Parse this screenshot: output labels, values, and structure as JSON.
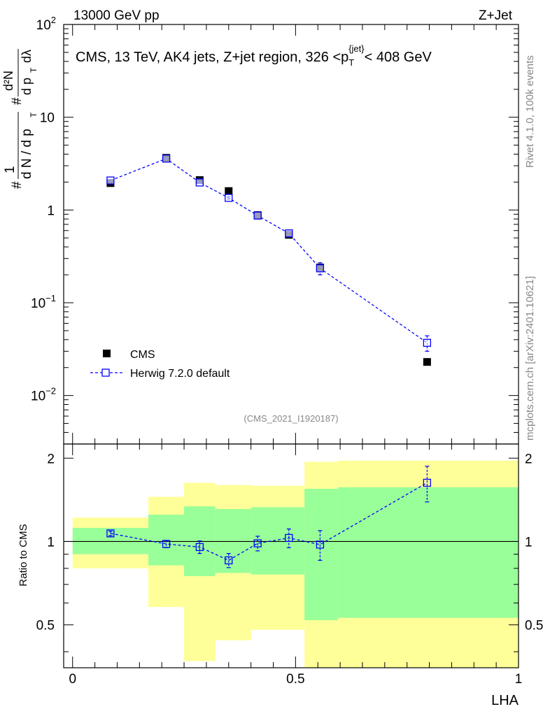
{
  "header": {
    "left": "13000 GeV pp",
    "right": "Z+Jet"
  },
  "side": {
    "rivet": "Rivet 4.1.0,  100k events",
    "mcplots": "mcplots.cern.ch [arXiv:2401.10621]"
  },
  "watermark": "(CMS_2021_I1920187)",
  "colors": {
    "mc": "#0000ff",
    "data": "#000000",
    "band_inner": "#99ff99",
    "band_outer": "#ffff99"
  },
  "chart_data": [
    {
      "type": "scatter",
      "title": "CMS, 13 TeV, AK4 jets, Z+jet region, 326 <p_T^{jet}< 408 GeV",
      "title_parts": {
        "main": "CMS, 13 TeV, AK4 jets, Z+jet region, 326 <p",
        "sub": "T",
        "sup": "{jet}",
        "tail": "< 408 GeV"
      },
      "xlabel": "LHA",
      "ylabel": "1/dN/dp_T  d²N/dp_T dλ",
      "ylabel_parts": {
        "frac_top": "1",
        "frac_bottom": "d N / d p",
        "t": "T",
        "d2n_top": "d²N",
        "d2n_bottom": "d p",
        "dlambda": "dλ",
        "hash": "#"
      },
      "yscale": "log",
      "ylim": [
        0.003,
        100
      ],
      "xlim": [
        -0.02,
        1.0
      ],
      "yticks": [
        {
          "value": 0.01,
          "base": "10",
          "exp": "−2"
        },
        {
          "value": 0.1,
          "base": "10",
          "exp": "−1"
        },
        {
          "value": 1,
          "base": "1",
          "exp": ""
        },
        {
          "value": 10,
          "base": "10",
          "exp": ""
        },
        {
          "value": 100,
          "base": "10",
          "exp": "2"
        }
      ],
      "series": [
        {
          "name": "CMS",
          "marker": "filled-square",
          "x": [
            0.085,
            0.21,
            0.285,
            0.35,
            0.415,
            0.485,
            0.555,
            0.795
          ],
          "y": [
            1.95,
            3.65,
            2.1,
            1.6,
            0.88,
            0.54,
            0.24,
            0.023
          ]
        },
        {
          "name": "Herwig 7.2.0 default",
          "marker": "open-square-dashed",
          "x": [
            0.085,
            0.21,
            0.285,
            0.35,
            0.415,
            0.485,
            0.555,
            0.795
          ],
          "y": [
            2.08,
            3.58,
            1.98,
            1.35,
            0.87,
            0.56,
            0.235,
            0.037
          ],
          "yerr_low": [
            0.05,
            0.08,
            0.05,
            0.04,
            0.03,
            0.03,
            0.035,
            0.007
          ],
          "yerr_high": [
            0.05,
            0.08,
            0.05,
            0.04,
            0.03,
            0.03,
            0.035,
            0.007
          ]
        }
      ]
    },
    {
      "type": "line",
      "ylabel": "Ratio to CMS",
      "xlabel": "LHA",
      "xlim": [
        -0.02,
        1.0
      ],
      "ylim": [
        0.35,
        2.25
      ],
      "yticks": [
        0.5,
        1,
        2
      ],
      "ytick_labels": [
        "0.5",
        "1",
        "2"
      ],
      "xticks": [
        0,
        0.5,
        1
      ],
      "xtick_labels": [
        "0",
        "0.5",
        "1"
      ],
      "reference_line": 1,
      "bands": {
        "edges": [
          0.0,
          0.17,
          0.25,
          0.32,
          0.4,
          0.52,
          0.595,
          1.0
        ],
        "outer_low": [
          0.8,
          0.58,
          0.37,
          0.44,
          0.48,
          0.33,
          0.35
        ],
        "outer_high": [
          1.22,
          1.45,
          1.63,
          1.6,
          1.59,
          1.62,
          1.96
        ],
        "inner_low": [
          0.9,
          0.82,
          0.75,
          0.77,
          0.76,
          0.52,
          0.53
        ],
        "inner_high": [
          1.12,
          1.25,
          1.34,
          1.31,
          1.33,
          1.56,
          1.57
        ],
        "edges_2": [
          0.52,
          0.595,
          1.0
        ],
        "outer_high_2": [
          1.94,
          1.96
        ],
        "inner_high_2": [
          1.55,
          1.57
        ]
      },
      "series": [
        {
          "name": "Herwig 7.2.0 default / CMS",
          "x": [
            0.085,
            0.21,
            0.285,
            0.35,
            0.415,
            0.485,
            0.555,
            0.795
          ],
          "y": [
            1.07,
            0.98,
            0.955,
            0.855,
            0.985,
            1.03,
            0.975,
            1.63
          ],
          "yerr_low": [
            0.02,
            0.03,
            0.05,
            0.05,
            0.06,
            0.08,
            0.12,
            0.24
          ],
          "yerr_high": [
            0.02,
            0.03,
            0.05,
            0.05,
            0.06,
            0.08,
            0.12,
            0.24
          ]
        }
      ]
    }
  ]
}
